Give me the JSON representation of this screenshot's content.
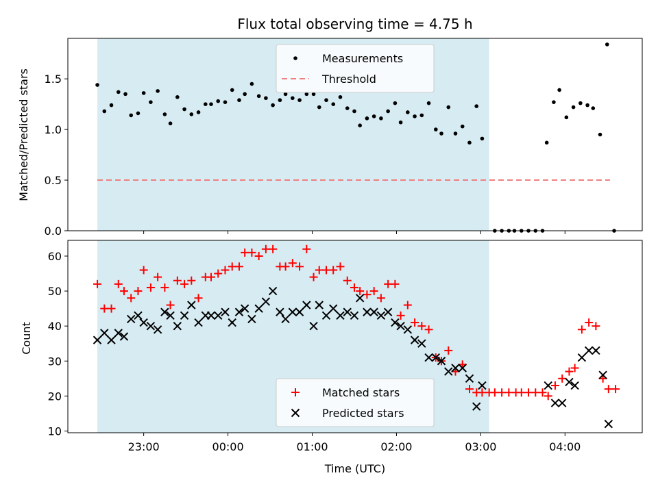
{
  "chart_data": {
    "title": "Flux total observing time = 4.75 h",
    "xlabel": "Time (UTC)",
    "x_ticks": [
      "23:00",
      "00:00",
      "01:00",
      "02:00",
      "03:00",
      "04:00"
    ],
    "colors": {
      "span": "#add8e6",
      "measurements": "#000000",
      "threshold": "#f08080",
      "matched": "#ff0000",
      "predicted": "#000000"
    },
    "highlight_span": {
      "start": "22:27",
      "end": "03:06"
    },
    "panels": [
      {
        "type": "scatter",
        "ylabel": "Matched/Predicted stars",
        "ylim": [
          0,
          1.9
        ],
        "yticks": [
          "0.0",
          "0.5",
          "1.0",
          "1.5"
        ],
        "legend": {
          "placement": "upper center",
          "entries": [
            "Measurements",
            "Threshold"
          ]
        },
        "threshold": {
          "value": 0.5,
          "x_start": "22:27",
          "x_end": "04:32"
        },
        "series": [
          {
            "name": "Measurements",
            "points": [
              [
                "22:27",
                1.44
              ],
              [
                "22:32",
                1.18
              ],
              [
                "22:37",
                1.24
              ],
              [
                "22:42",
                1.37
              ],
              [
                "22:47",
                1.35
              ],
              [
                "22:51",
                1.14
              ],
              [
                "22:56",
                1.16
              ],
              [
                "23:00",
                1.36
              ],
              [
                "23:05",
                1.27
              ],
              [
                "23:10",
                1.38
              ],
              [
                "23:15",
                1.15
              ],
              [
                "23:19",
                1.06
              ],
              [
                "23:24",
                1.32
              ],
              [
                "23:29",
                1.2
              ],
              [
                "23:34",
                1.15
              ],
              [
                "23:39",
                1.17
              ],
              [
                "23:44",
                1.25
              ],
              [
                "23:48",
                1.25
              ],
              [
                "23:53",
                1.28
              ],
              [
                "23:58",
                1.27
              ],
              [
                "00:03",
                1.39
              ],
              [
                "00:08",
                1.29
              ],
              [
                "00:12",
                1.35
              ],
              [
                "00:17",
                1.45
              ],
              [
                "00:22",
                1.33
              ],
              [
                "00:27",
                1.31
              ],
              [
                "00:32",
                1.24
              ],
              [
                "00:37",
                1.29
              ],
              [
                "00:41",
                1.35
              ],
              [
                "00:46",
                1.31
              ],
              [
                "00:51",
                1.29
              ],
              [
                "00:56",
                1.35
              ],
              [
                "01:01",
                1.35
              ],
              [
                "01:05",
                1.22
              ],
              [
                "01:10",
                1.29
              ],
              [
                "01:15",
                1.25
              ],
              [
                "01:20",
                1.32
              ],
              [
                "01:25",
                1.21
              ],
              [
                "01:30",
                1.18
              ],
              [
                "01:34",
                1.04
              ],
              [
                "01:39",
                1.11
              ],
              [
                "01:44",
                1.13
              ],
              [
                "01:49",
                1.11
              ],
              [
                "01:54",
                1.18
              ],
              [
                "01:59",
                1.26
              ],
              [
                "02:03",
                1.07
              ],
              [
                "02:08",
                1.17
              ],
              [
                "02:13",
                1.13
              ],
              [
                "02:18",
                1.14
              ],
              [
                "02:23",
                1.26
              ],
              [
                "02:28",
                1.0
              ],
              [
                "02:32",
                0.96
              ],
              [
                "02:37",
                1.22
              ],
              [
                "02:42",
                0.96
              ],
              [
                "02:47",
                1.03
              ],
              [
                "02:52",
                0.87
              ],
              [
                "02:57",
                1.23
              ],
              [
                "03:01",
                0.91
              ],
              [
                "03:10",
                0.0
              ],
              [
                "03:15",
                0.0
              ],
              [
                "03:20",
                0.0
              ],
              [
                "03:24",
                0.0
              ],
              [
                "03:29",
                0.0
              ],
              [
                "03:34",
                0.0
              ],
              [
                "03:39",
                0.0
              ],
              [
                "03:44",
                0.0
              ],
              [
                "03:47",
                0.87
              ],
              [
                "03:52",
                1.27
              ],
              [
                "03:56",
                1.39
              ],
              [
                "04:01",
                1.12
              ],
              [
                "04:06",
                1.22
              ],
              [
                "04:11",
                1.26
              ],
              [
                "04:16",
                1.24
              ],
              [
                "04:20",
                1.21
              ],
              [
                "04:25",
                0.95
              ],
              [
                "04:30",
                1.84
              ],
              [
                "04:35",
                0.0
              ]
            ]
          }
        ]
      },
      {
        "type": "scatter",
        "ylabel": "Count",
        "ylim": [
          9.5,
          64.5
        ],
        "yticks": [
          "10",
          "20",
          "30",
          "40",
          "50",
          "60"
        ],
        "legend": {
          "placement": "lower center",
          "entries": [
            "Matched stars",
            "Predicted stars"
          ]
        },
        "series": [
          {
            "name": "Matched stars",
            "marker": "+",
            "points": [
              [
                "22:27",
                52
              ],
              [
                "22:32",
                45
              ],
              [
                "22:37",
                45
              ],
              [
                "22:42",
                52
              ],
              [
                "22:46",
                50
              ],
              [
                "22:51",
                48
              ],
              [
                "22:56",
                50
              ],
              [
                "23:00",
                56
              ],
              [
                "23:05",
                51
              ],
              [
                "23:10",
                54
              ],
              [
                "23:15",
                51
              ],
              [
                "23:19",
                46
              ],
              [
                "23:24",
                53
              ],
              [
                "23:29",
                52
              ],
              [
                "23:34",
                53
              ],
              [
                "23:39",
                48
              ],
              [
                "23:44",
                54
              ],
              [
                "23:48",
                54
              ],
              [
                "23:53",
                55
              ],
              [
                "23:58",
                56
              ],
              [
                "00:03",
                57
              ],
              [
                "00:08",
                57
              ],
              [
                "00:12",
                61
              ],
              [
                "00:17",
                61
              ],
              [
                "00:22",
                60
              ],
              [
                "00:27",
                62
              ],
              [
                "00:32",
                62
              ],
              [
                "00:37",
                57
              ],
              [
                "00:41",
                57
              ],
              [
                "00:46",
                58
              ],
              [
                "00:51",
                57
              ],
              [
                "00:56",
                62
              ],
              [
                "01:01",
                54
              ],
              [
                "01:05",
                56
              ],
              [
                "01:10",
                56
              ],
              [
                "01:15",
                56
              ],
              [
                "01:20",
                57
              ],
              [
                "01:25",
                53
              ],
              [
                "01:30",
                51
              ],
              [
                "01:34",
                50
              ],
              [
                "01:39",
                49
              ],
              [
                "01:44",
                50
              ],
              [
                "01:49",
                48
              ],
              [
                "01:54",
                52
              ],
              [
                "01:59",
                52
              ],
              [
                "02:03",
                43
              ],
              [
                "02:08",
                46
              ],
              [
                "02:13",
                41
              ],
              [
                "02:18",
                40
              ],
              [
                "02:23",
                39
              ],
              [
                "02:28",
                31
              ],
              [
                "02:32",
                30
              ],
              [
                "02:37",
                33
              ],
              [
                "02:42",
                27
              ],
              [
                "02:47",
                29
              ],
              [
                "02:52",
                22
              ],
              [
                "02:57",
                21
              ],
              [
                "03:01",
                21
              ],
              [
                "03:06",
                21
              ],
              [
                "03:10",
                21
              ],
              [
                "03:15",
                21
              ],
              [
                "03:20",
                21
              ],
              [
                "03:25",
                21
              ],
              [
                "03:29",
                21
              ],
              [
                "03:34",
                21
              ],
              [
                "03:39",
                21
              ],
              [
                "03:44",
                21
              ],
              [
                "03:48",
                20
              ],
              [
                "03:53",
                23
              ],
              [
                "03:58",
                25
              ],
              [
                "04:03",
                27
              ],
              [
                "04:07",
                28
              ],
              [
                "04:12",
                39
              ],
              [
                "04:17",
                41
              ],
              [
                "04:22",
                40
              ],
              [
                "04:27",
                25
              ],
              [
                "04:31",
                22
              ],
              [
                "04:36",
                22
              ]
            ]
          },
          {
            "name": "Predicted stars",
            "marker": "x",
            "points": [
              [
                "22:27",
                36
              ],
              [
                "22:32",
                38
              ],
              [
                "22:37",
                36
              ],
              [
                "22:42",
                38
              ],
              [
                "22:46",
                37
              ],
              [
                "22:51",
                42
              ],
              [
                "22:56",
                43
              ],
              [
                "23:00",
                41
              ],
              [
                "23:05",
                40
              ],
              [
                "23:10",
                39
              ],
              [
                "23:15",
                44
              ],
              [
                "23:19",
                43
              ],
              [
                "23:24",
                40
              ],
              [
                "23:29",
                43
              ],
              [
                "23:34",
                46
              ],
              [
                "23:39",
                41
              ],
              [
                "23:44",
                43
              ],
              [
                "23:48",
                43
              ],
              [
                "23:53",
                43
              ],
              [
                "23:58",
                44
              ],
              [
                "00:03",
                41
              ],
              [
                "00:08",
                44
              ],
              [
                "00:12",
                45
              ],
              [
                "00:17",
                42
              ],
              [
                "00:22",
                45
              ],
              [
                "00:27",
                47
              ],
              [
                "00:32",
                50
              ],
              [
                "00:37",
                44
              ],
              [
                "00:41",
                42
              ],
              [
                "00:46",
                44
              ],
              [
                "00:51",
                44
              ],
              [
                "00:56",
                46
              ],
              [
                "01:01",
                40
              ],
              [
                "01:05",
                46
              ],
              [
                "01:10",
                43
              ],
              [
                "01:15",
                45
              ],
              [
                "01:20",
                43
              ],
              [
                "01:25",
                44
              ],
              [
                "01:30",
                43
              ],
              [
                "01:34",
                48
              ],
              [
                "01:39",
                44
              ],
              [
                "01:44",
                44
              ],
              [
                "01:49",
                43
              ],
              [
                "01:54",
                44
              ],
              [
                "01:59",
                41
              ],
              [
                "02:03",
                40
              ],
              [
                "02:08",
                39
              ],
              [
                "02:13",
                36
              ],
              [
                "02:18",
                35
              ],
              [
                "02:23",
                31
              ],
              [
                "02:28",
                31
              ],
              [
                "02:32",
                30
              ],
              [
                "02:37",
                27
              ],
              [
                "02:42",
                28
              ],
              [
                "02:47",
                28
              ],
              [
                "02:52",
                25
              ],
              [
                "02:57",
                17
              ],
              [
                "03:01",
                23
              ],
              [
                "03:48",
                23
              ],
              [
                "03:53",
                18
              ],
              [
                "03:58",
                18
              ],
              [
                "04:03",
                24
              ],
              [
                "04:07",
                23
              ],
              [
                "04:12",
                31
              ],
              [
                "04:17",
                33
              ],
              [
                "04:22",
                33
              ],
              [
                "04:27",
                26
              ],
              [
                "04:31",
                12
              ]
            ]
          }
        ]
      }
    ]
  }
}
